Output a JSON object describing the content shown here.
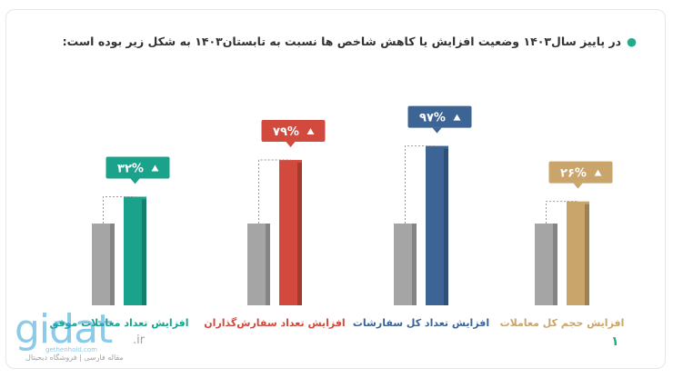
{
  "heading": "در پاییز سال۱۴۰۳ وضعیت افزایش یا کاهش شاخص ها نسبت به تابستان۱۴۰۳ به شکل زیر بوده است:",
  "colors": {
    "base_bar": "#a5a5a5",
    "accent_green": "#1aa38a",
    "connector": "#9a9a9a"
  },
  "chart_data": {
    "type": "bar",
    "unit": "%",
    "groups": [
      {
        "label": "افزایش تعداد معاملات موفق",
        "change": "۳۲%",
        "value": 32,
        "color": "#1aa38a",
        "label_color": "#1aa38a"
      },
      {
        "label": "افزایش تعداد سفارش‌گذاران",
        "change": "۷۹%",
        "value": 79,
        "color": "#d14a3d",
        "label_color": "#d14a3d"
      },
      {
        "label": "افزایش تعداد کل سفارشات",
        "change": "۹۷%",
        "value": 97,
        "color": "#3c6596",
        "label_color": "#3c6596"
      },
      {
        "label": "افزایش حجم کل معاملات",
        "change": "۲۶%",
        "value": 26,
        "color": "#c9a46b",
        "label_color": "#c9a46b"
      }
    ]
  },
  "watermark": {
    "logo_text": "gidat",
    "tld": ".ir",
    "site": "gethenhold.com",
    "subtitle": "مقاله فارسی | فروشگاه دیجیتال"
  },
  "page_number": "۱"
}
